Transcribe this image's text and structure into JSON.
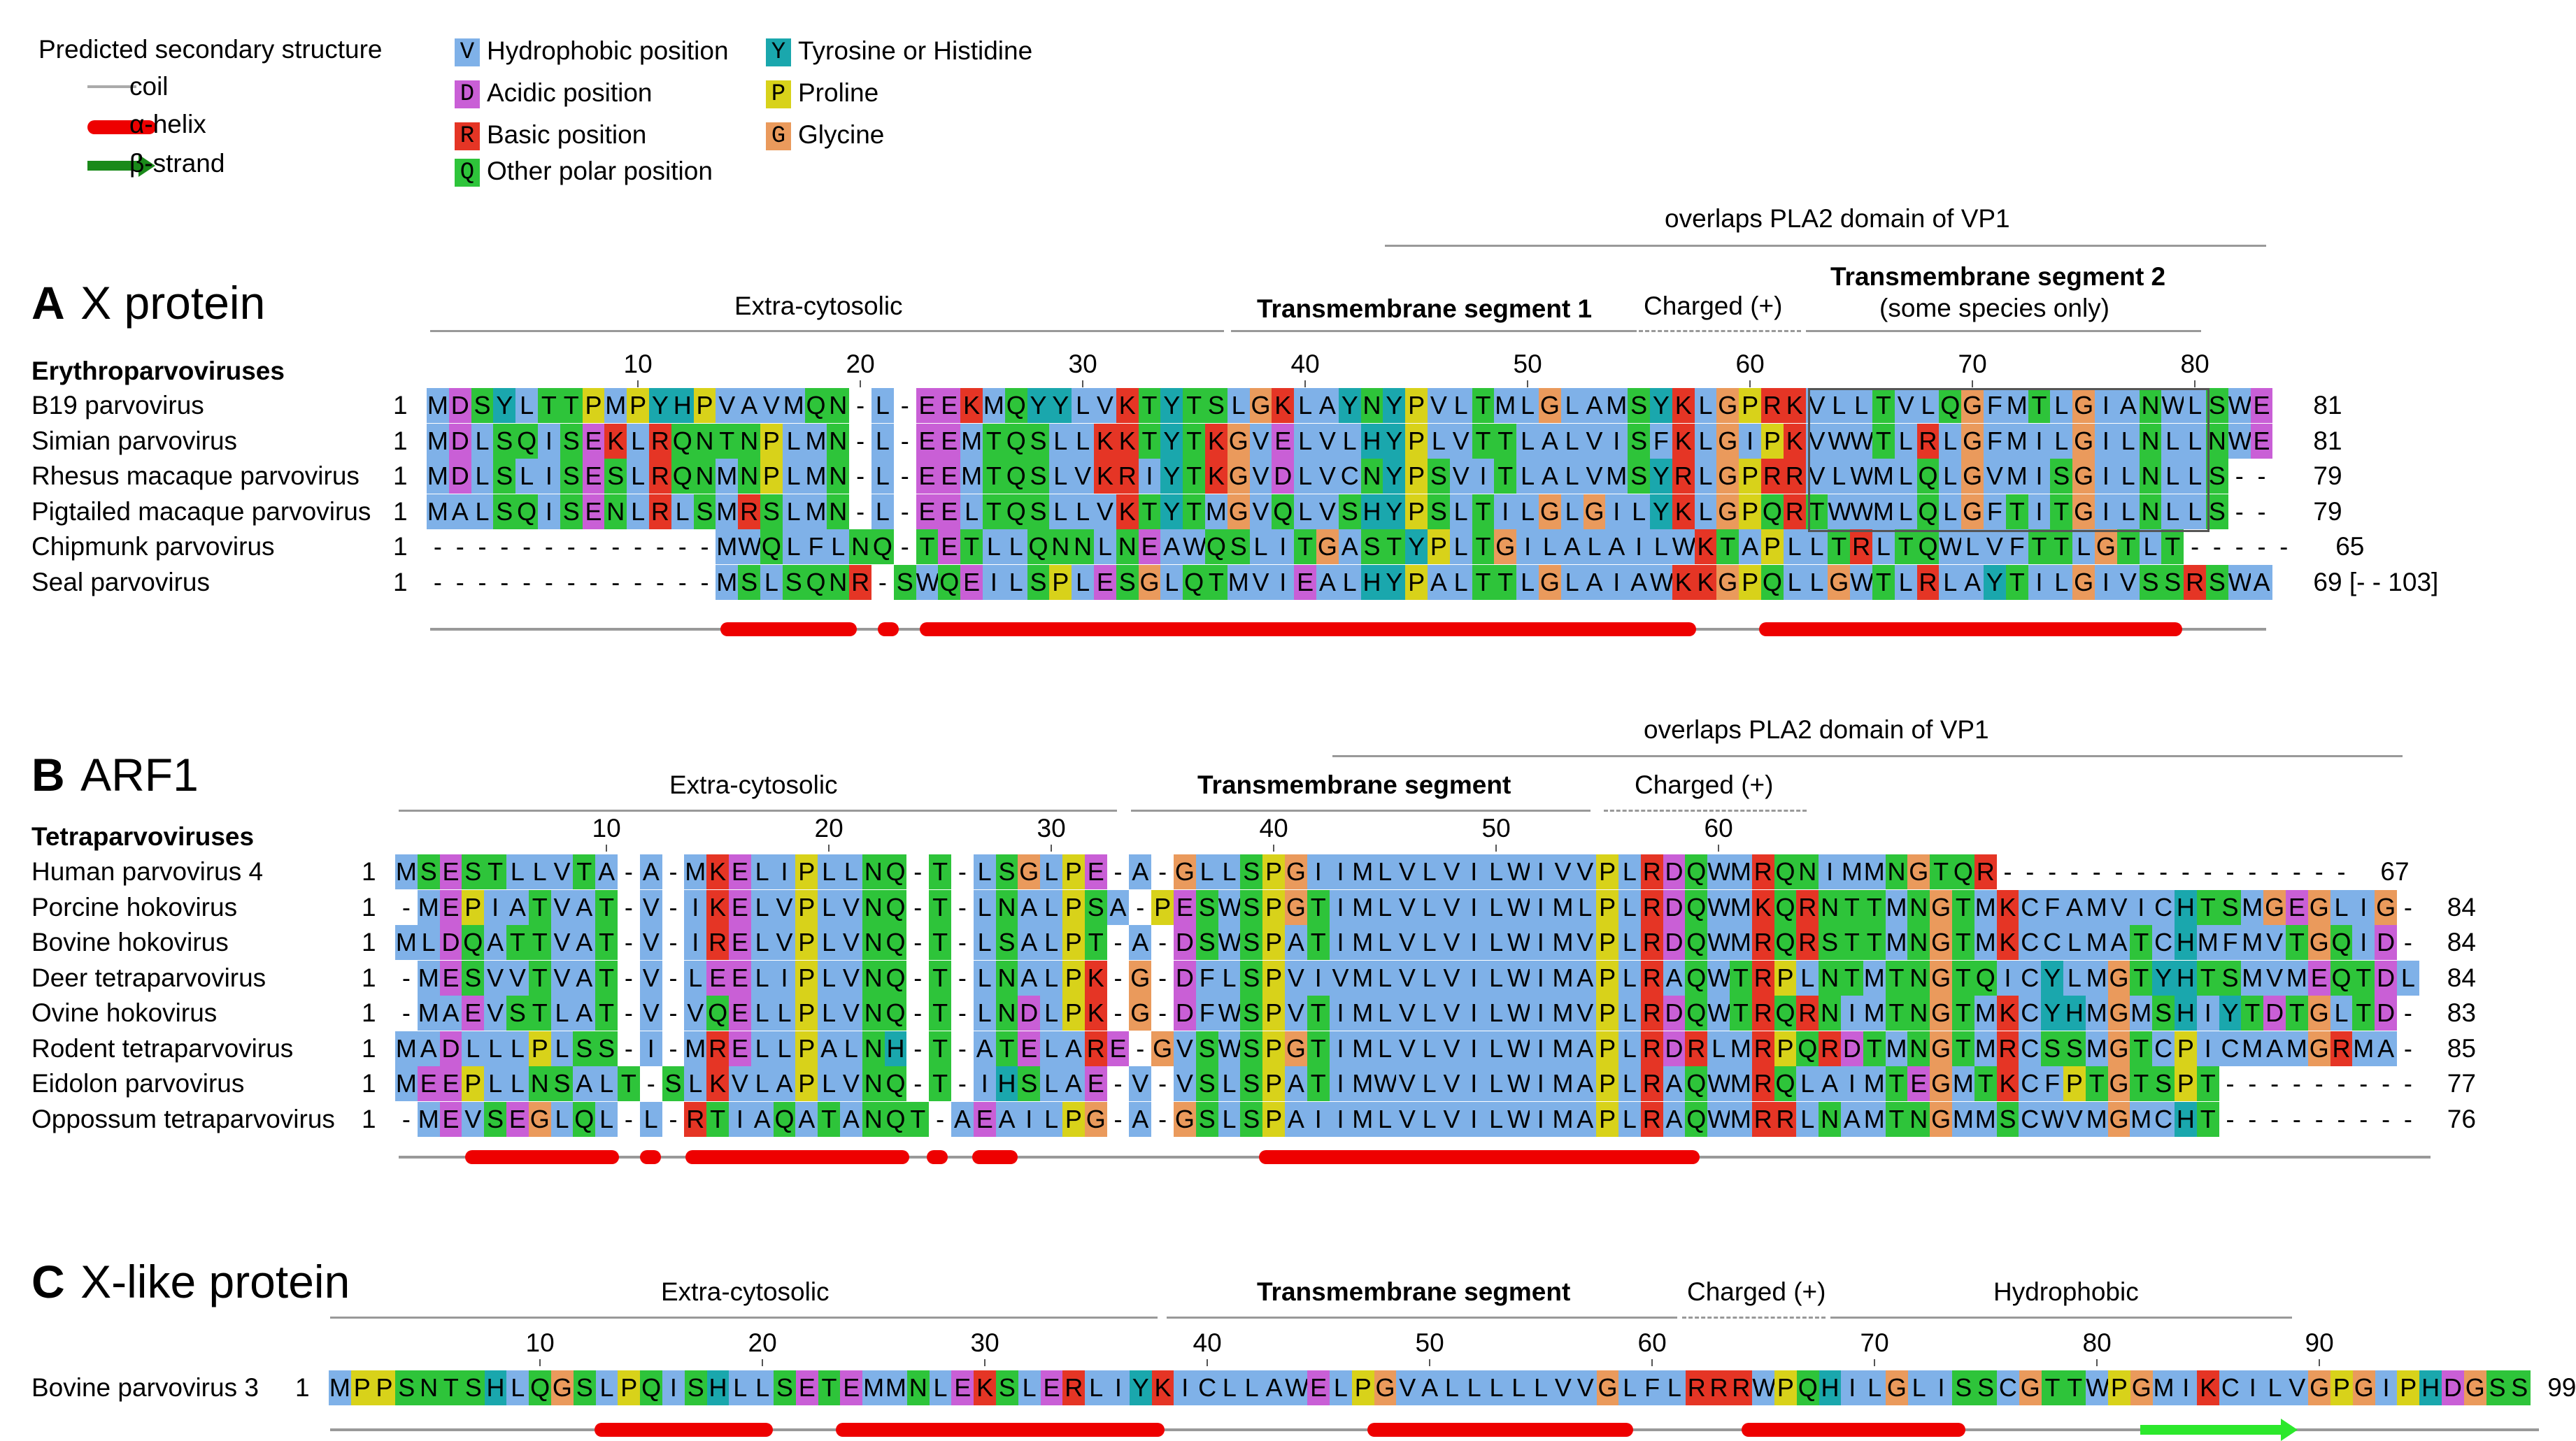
{
  "legend": {
    "title": "Predicted secondary structure",
    "ss_items": [
      {
        "label": "coil",
        "shape": "coil"
      },
      {
        "label": "α-helix",
        "shape": "helix"
      },
      {
        "label": "β-strand",
        "shape": "strand"
      }
    ],
    "residue_classes": [
      {
        "letter": "V",
        "label": "Hydrophobic position",
        "color": "#7fb1e8"
      },
      {
        "letter": "D",
        "label": "Acidic position",
        "color": "#c95fd6"
      },
      {
        "letter": "R",
        "label": "Basic position",
        "color": "#e53525"
      },
      {
        "letter": "Q",
        "label": "Other polar position",
        "color": "#2ec43a"
      },
      {
        "letter": "Y",
        "label": "Tyrosine or Histidine",
        "color": "#1aa7ad"
      },
      {
        "letter": "P",
        "label": "Proline",
        "color": "#d8d21a"
      },
      {
        "letter": "G",
        "label": "Glycine",
        "color": "#ea9a5c"
      }
    ]
  },
  "panels": [
    {
      "letter": "A",
      "title": "X protein",
      "group": "Erythroparvoviruses",
      "overlap_label": "overlaps PLA2 domain of VP1",
      "regions": [
        "Extra-cytosolic",
        "Transmembrane segment 1",
        "Charged (+)",
        "Transmembrane segment 2",
        "(some species only)"
      ],
      "ticks": [
        "10",
        "20",
        "30",
        "40",
        "50",
        "60",
        "70",
        "80"
      ],
      "rows": [
        {
          "name": "B19 parvovirus",
          "start": "1",
          "seq": "MDSYLTTPMPYHPVAVMQN-L-EEKMQYYLVKTYTSLGKLAYNYPVLTMLGLAMSYKLGPRKVLLTVLQGFMTLGIANWLSWE",
          "end": "81"
        },
        {
          "name": "Simian parvovirus",
          "start": "1",
          "seq": "MDLSQISEKLRQNTNPLMN-L-EEMTQSLLKKTYTKGVELVLHYPLVTTLALVISFKLGIPKVWWTLRLGFMILGILNLLNWE",
          "end": "81"
        },
        {
          "name": "Rhesus macaque parvovirus",
          "start": "1",
          "seq": "MDLSLISESLRQNMNPLMN-L-EEMTQSLVKRIYTKGVDLVCNYPSVITLALVMSYRLGPRRVLWMLQLGVMISGILNLLS--",
          "end": "79"
        },
        {
          "name": "Pigtailed macaque parvovirus",
          "start": "1",
          "seq": "MALSQISENLRLSMRSLMN-L-EELTQSLLVKTYTMGVQLVSHYPSLTILGLGILYKLGPQRTWWMLQLGFTITGILNLLS--",
          "end": "79"
        },
        {
          "name": "Chipmunk parvovirus",
          "start": "1",
          "seq": "-------------MWQLFLNQ-TETLLQNNLNEAWQSLITGASTYPLTGILALAILWKTAPLLTRLTQWLVFTTLGTLT-----",
          "end": "65"
        },
        {
          "name": "Seal parvovirus",
          "start": "1",
          "seq": "-------------MSLSQNR-SWQEILSPLESGLQTMVIEALHYPALTTLGLAIAWKKGPQLLGWTLRLAYTILGIVSSRSWA",
          "end": "69 [- - 103]"
        }
      ]
    },
    {
      "letter": "B",
      "title": "ARF1",
      "group": "Tetraparvoviruses",
      "overlap_label": "overlaps PLA2 domain of VP1",
      "regions": [
        "Extra-cytosolic",
        "Transmembrane segment",
        "Charged (+)"
      ],
      "ticks": [
        "10",
        "20",
        "30",
        "40",
        "50",
        "60"
      ],
      "rows": [
        {
          "name": "Human parvovirus 4",
          "start": "1",
          "seq": "MSESTLLVTA-A-MKELIPLLNQ-T-LSGLPE-A-GLLSPGIIMLVLVILWIVVPLRDQWMRQNIMMNGTQR----------------",
          "end": "67"
        },
        {
          "name": "Porcine hokovirus",
          "start": "1",
          "seq": "-MEPIATVAT-V-IKELVPLVNQ-T-LNALPSA-PESWSPGTIMLVLVILWIMLPLRDQWMKQRNTTMNGTMKCFAMVICHTSMGEGLIG-",
          "end": "84"
        },
        {
          "name": "Bovine hokovirus",
          "start": "1",
          "seq": "MLDQATTVAT-V-IRELVPLVNQ-T-LSALPT-A-DSWSPATIMLVLVILWIMVPLRDQWMRQRSTTMNGTMKCCLMATCHMFMVTGQID-",
          "end": "84"
        },
        {
          "name": "Deer tetraparvovirus",
          "start": "1",
          "seq": "-MESVVTVAT-V-LEELIPLVNQ-T-LNALPK-G-DFLSPVIVMLVLVILWIMAPLRAQWTRPLNTMTNGTQICYLMGTYHTSMVMEQTDL",
          "end": "84"
        },
        {
          "name": "Ovine hokovirus",
          "start": "1",
          "seq": "-MAEVSTLAT-V-VQELLPLVNQ-T-LNDLPK-G-DFWSPVTIMLVLVILWIMVPLRDQWTRQRNIMTNGTMKCYHMGMSHIYTDTGLTD-",
          "end": "83"
        },
        {
          "name": "Rodent tetraparvovirus",
          "start": "1",
          "seq": "MADLLLPLSS-I-MRELLPALNH-T-ATELARE-GVSWSPGTIMLVLVILWIMAPLRDRLMRPQRDTMNGTMRCSSMGTCPICMAMGRMA-",
          "end": "85"
        },
        {
          "name": "Eidolon parvovirus",
          "start": "1",
          "seq": "MEEPLLNSALT-SLKVLAPLVNQ-T-IHSLAE-V-VSLSPATIMWVLVILWIMAPLRAQWMRQLAIMTEGMTKCFPTGTSPT---------",
          "end": "77"
        },
        {
          "name": "Oppossum tetraparvovirus",
          "start": "1",
          "seq": "-MEVSEGLQL-L-RTIAQATANQT-AEAILPG-A-GSLSPAIIMLVLVILWIMAPLRAQWMRRLNAMTNGMMSCWVMGMCHT---------",
          "end": "76"
        }
      ]
    },
    {
      "letter": "C",
      "title": "X-like protein",
      "group": "",
      "overlap_label": "",
      "regions": [
        "Extra-cytosolic",
        "Transmembrane segment",
        "Charged (+)",
        "Hydrophobic"
      ],
      "ticks": [
        "10",
        "20",
        "30",
        "40",
        "50",
        "60",
        "70",
        "80",
        "90"
      ],
      "rows": [
        {
          "name": "Bovine parvovirus 3",
          "start": "1",
          "seq": "MPPSNTSHLQGSLPQISHLLSETEMMNLEKSLERLIYKICLLAWELPGVALLLLLVVGLFLRRRWPQHILGLISSCGTTWPGMIKCILVGPGIPHDGSS",
          "end": "99"
        }
      ]
    }
  ]
}
